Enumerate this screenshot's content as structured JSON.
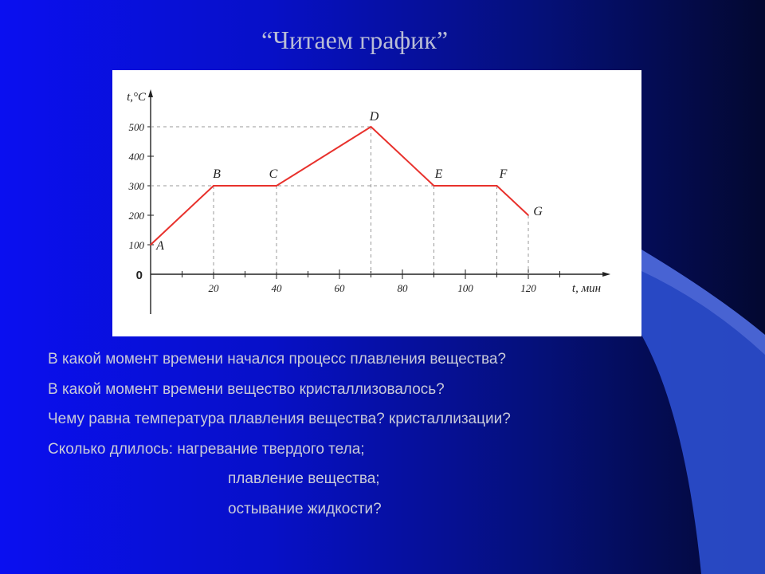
{
  "slide": {
    "title": "“Читаем график”",
    "colors": {
      "background_left": "#0a0ff0",
      "background_right": "#030830",
      "swoosh": "#2c4fd0",
      "chart_line": "#e8312c",
      "text": "#c8cad8"
    },
    "questions": [
      "В какой момент времени начался процесс плавления вещества?",
      "В какой момент времени вещество кристаллизовалось?",
      "Чему равна температура плавления вещества? кристаллизации?",
      "Сколько длилось: нагревание твердого тела;",
      "плавление вещества;",
      "остывание жидкости?"
    ]
  },
  "chart_data": {
    "type": "line",
    "title": "",
    "xlabel": "t, мин",
    "ylabel": "t,°C",
    "xlim": [
      0,
      138
    ],
    "ylim": [
      0,
      520
    ],
    "x_ticks": [
      20,
      40,
      60,
      80,
      100,
      120
    ],
    "x_tick_labels": [
      "20",
      "40",
      "60",
      "80",
      "100",
      "120"
    ],
    "y_ticks": [
      100,
      200,
      300,
      400,
      500
    ],
    "y_tick_labels": [
      "100",
      "200",
      "300",
      "400",
      "500"
    ],
    "origin_label": "0",
    "grid": false,
    "series": [
      {
        "points": [
          {
            "label": "A",
            "x": 0,
            "y": 100
          },
          {
            "label": "B",
            "x": 20,
            "y": 300
          },
          {
            "label": "C",
            "x": 40,
            "y": 300
          },
          {
            "label": "D",
            "x": 70,
            "y": 500
          },
          {
            "label": "E",
            "x": 90,
            "y": 300
          },
          {
            "label": "F",
            "x": 110,
            "y": 300
          },
          {
            "label": "G",
            "x": 120,
            "y": 200
          }
        ]
      }
    ]
  }
}
